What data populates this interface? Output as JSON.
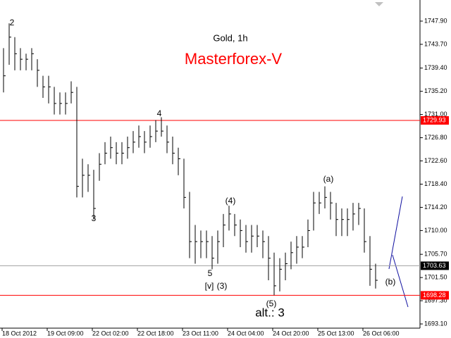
{
  "chart_data": {
    "type": "ohlc",
    "title": "Gold, 1h",
    "subtitle": "Masterforex-V",
    "categories": [
      "18 Oct 2012",
      null,
      null,
      null,
      null,
      null,
      null,
      null,
      "19 Oct 09:00",
      null,
      null,
      null,
      null,
      null,
      null,
      null,
      "22 Oct 02:00",
      null,
      null,
      null,
      null,
      null,
      null,
      null,
      "22 Oct 18:00",
      null,
      null,
      null,
      null,
      null,
      null,
      null,
      "23 Oct 11:00",
      null,
      null,
      null,
      null,
      null,
      null,
      null,
      "24 Oct 04:00",
      null,
      null,
      null,
      null,
      null,
      null,
      null,
      "24 Oct 20:00",
      null,
      null,
      null,
      null,
      null,
      null,
      null,
      "25 Oct 13:00",
      null,
      null,
      null,
      null,
      null,
      null,
      null,
      "26 Oct 06:00",
      null,
      null
    ],
    "high": [
      1743,
      1747.5,
      1745,
      1743,
      1742,
      1743,
      1741,
      1738,
      1738,
      1736,
      1735,
      1735,
      1737,
      1736,
      1723,
      1722,
      1721,
      1724,
      1726,
      1727,
      1726,
      1726,
      1727,
      1728,
      1729,
      1728,
      1729,
      1730,
      1730.5,
      1729,
      1727,
      1725,
      1723,
      1717,
      1711,
      1710,
      1710,
      1709,
      1710,
      1713,
      1714.5,
      1713,
      1712,
      1711,
      1711,
      1711,
      1710,
      1709,
      1706,
      1705,
      1706,
      1708,
      1709,
      1709,
      1712,
      1717,
      1717,
      1718,
      1717,
      1715,
      1714,
      1714,
      1715,
      1715,
      1714,
      1709,
      1704
    ],
    "low": [
      1735,
      1740,
      1739,
      1739,
      1739,
      1739,
      1736,
      1734,
      1733,
      1731,
      1731,
      1731,
      1733,
      1716,
      1716,
      1717,
      1712,
      1719,
      1722,
      1723,
      1722,
      1722,
      1723,
      1724,
      1725,
      1724,
      1725,
      1726,
      1727,
      1724,
      1722,
      1720,
      1714,
      1705,
      1704,
      1705,
      1705,
      1703,
      1704,
      1707,
      1710,
      1709,
      1707,
      1706,
      1706,
      1707,
      1705,
      1701,
      1698.3,
      1699,
      1701,
      1703,
      1704,
      1705,
      1707,
      1710,
      1713,
      1714,
      1712,
      1709,
      1709,
      1709,
      1710,
      1711,
      1706,
      1700,
      1699.5
    ],
    "close": [
      1738,
      1745,
      1742,
      1741,
      1741,
      1742,
      1739,
      1736,
      1736,
      1733,
      1733,
      1733,
      1735,
      1718,
      1720,
      1720,
      1714,
      1722,
      1724,
      1725,
      1724,
      1724,
      1725,
      1726,
      1727,
      1726,
      1727,
      1728,
      1728,
      1726,
      1724,
      1723,
      1716,
      1708,
      1708,
      1708,
      1708,
      1705,
      1708,
      1711,
      1713,
      1711,
      1710,
      1708,
      1709,
      1709,
      1708,
      1705,
      1700,
      1703,
      1704,
      1706,
      1707,
      1707,
      1710,
      1715,
      1715,
      1716,
      1715,
      1712,
      1712,
      1712,
      1713,
      1714,
      1708,
      1703,
      1701
    ],
    "color": "#000000",
    "ylim": [
      1692.34,
      1751.72
    ],
    "yticks": [
      {
        "value": 1693.1,
        "label": "1693.10"
      },
      {
        "value": 1697.3,
        "label": "1697.30"
      },
      {
        "value": 1701.5,
        "label": "1701.50"
      },
      {
        "value": 1705.7,
        "label": "1705.70"
      },
      {
        "value": 1710,
        "label": "1710.00"
      },
      {
        "value": 1714.2,
        "label": "1714.20"
      },
      {
        "value": 1718.4,
        "label": "1718.40"
      },
      {
        "value": 1722.6,
        "label": "1722.60"
      },
      {
        "value": 1726.8,
        "label": "1726.80"
      },
      {
        "value": 1731,
        "label": "1731.00"
      },
      {
        "value": 1735.2,
        "label": "1735.20"
      },
      {
        "value": 1739.4,
        "label": "1739.40"
      },
      {
        "value": 1743.7,
        "label": "1743.70"
      },
      {
        "value": 1747.9,
        "label": "1747.90"
      }
    ],
    "levels": [
      {
        "value": 1729.93,
        "color": "#ff0000"
      },
      {
        "value": 1703.63,
        "color": "#a0a0a0"
      },
      {
        "value": 1698.28,
        "color": "#ff0000"
      }
    ],
    "annotations": [
      "2",
      "3",
      "4",
      "5",
      "[v]",
      "(3)",
      "(4)",
      "(5)",
      "(a)",
      "(b)",
      "alt.: 3"
    ]
  }
}
